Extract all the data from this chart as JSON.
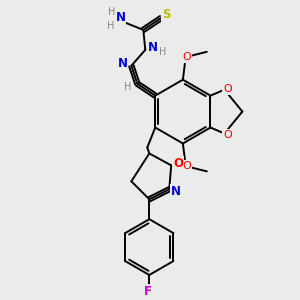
{
  "background_color": "#ebebeb",
  "bond_color": "#000000",
  "atom_colors": {
    "N": "#0000cc",
    "O": "#ff0000",
    "S": "#bbbb00",
    "F": "#cc00cc",
    "C": "#000000",
    "H": "#888888"
  },
  "figsize": [
    3.0,
    3.0
  ],
  "dpi": 100
}
